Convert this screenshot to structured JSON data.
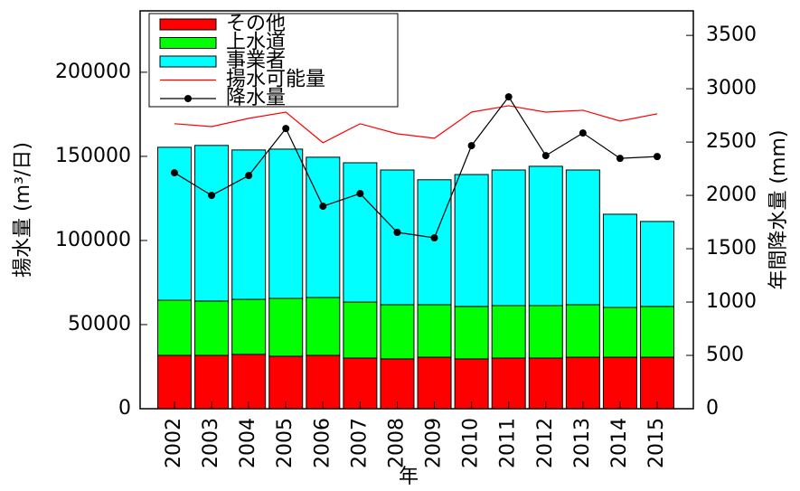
{
  "chart_data": {
    "type": "bar",
    "stacked": true,
    "xlabel": "年",
    "ylabel": "揚水量 (m³/日)",
    "y2label": "年間降水量 (mm)",
    "categories": [
      "2002",
      "2003",
      "2004",
      "2005",
      "2006",
      "2007",
      "2008",
      "2009",
      "2010",
      "2011",
      "2012",
      "2013",
      "2014",
      "2015"
    ],
    "series": [
      {
        "name": "その他",
        "type": "bar",
        "color": "#ff0000",
        "values": [
          31700,
          31700,
          32300,
          31200,
          31700,
          30100,
          29600,
          30600,
          29600,
          30100,
          30100,
          30600,
          30600,
          30600
        ]
      },
      {
        "name": "上水道",
        "type": "bar",
        "color": "#00ff00",
        "values": [
          32800,
          32300,
          32700,
          34400,
          34400,
          33300,
          32200,
          31200,
          31200,
          31200,
          31200,
          31200,
          29600,
          30200
        ]
      },
      {
        "name": "事業者",
        "type": "bar",
        "color": "#00ffff",
        "values": [
          90900,
          92500,
          88800,
          88700,
          83400,
          82800,
          80100,
          74300,
          78400,
          80600,
          82800,
          80100,
          55400,
          50500
        ]
      },
      {
        "name": "揚水可能量",
        "type": "line",
        "color": "#ff0000",
        "marker": false,
        "values": [
          169400,
          167700,
          172600,
          176300,
          158100,
          169400,
          163400,
          160800,
          176300,
          180100,
          176300,
          177400,
          171000,
          175300
        ]
      },
      {
        "name": "降水量",
        "type": "line",
        "axis": "y2",
        "color": "#000000",
        "marker": true,
        "values": [
          2212,
          2000,
          2186,
          2627,
          1898,
          2017,
          1653,
          1602,
          2466,
          2924,
          2373,
          2585,
          2347,
          2364
        ]
      }
    ],
    "ylim": [
      0,
      236500
    ],
    "yticks": [
      0,
      50000,
      100000,
      150000,
      200000
    ],
    "y2lim": [
      0,
      3730
    ],
    "y2ticks": [
      0,
      500,
      1000,
      1500,
      2000,
      2500,
      3000,
      3500
    ],
    "legend": "upper left"
  }
}
